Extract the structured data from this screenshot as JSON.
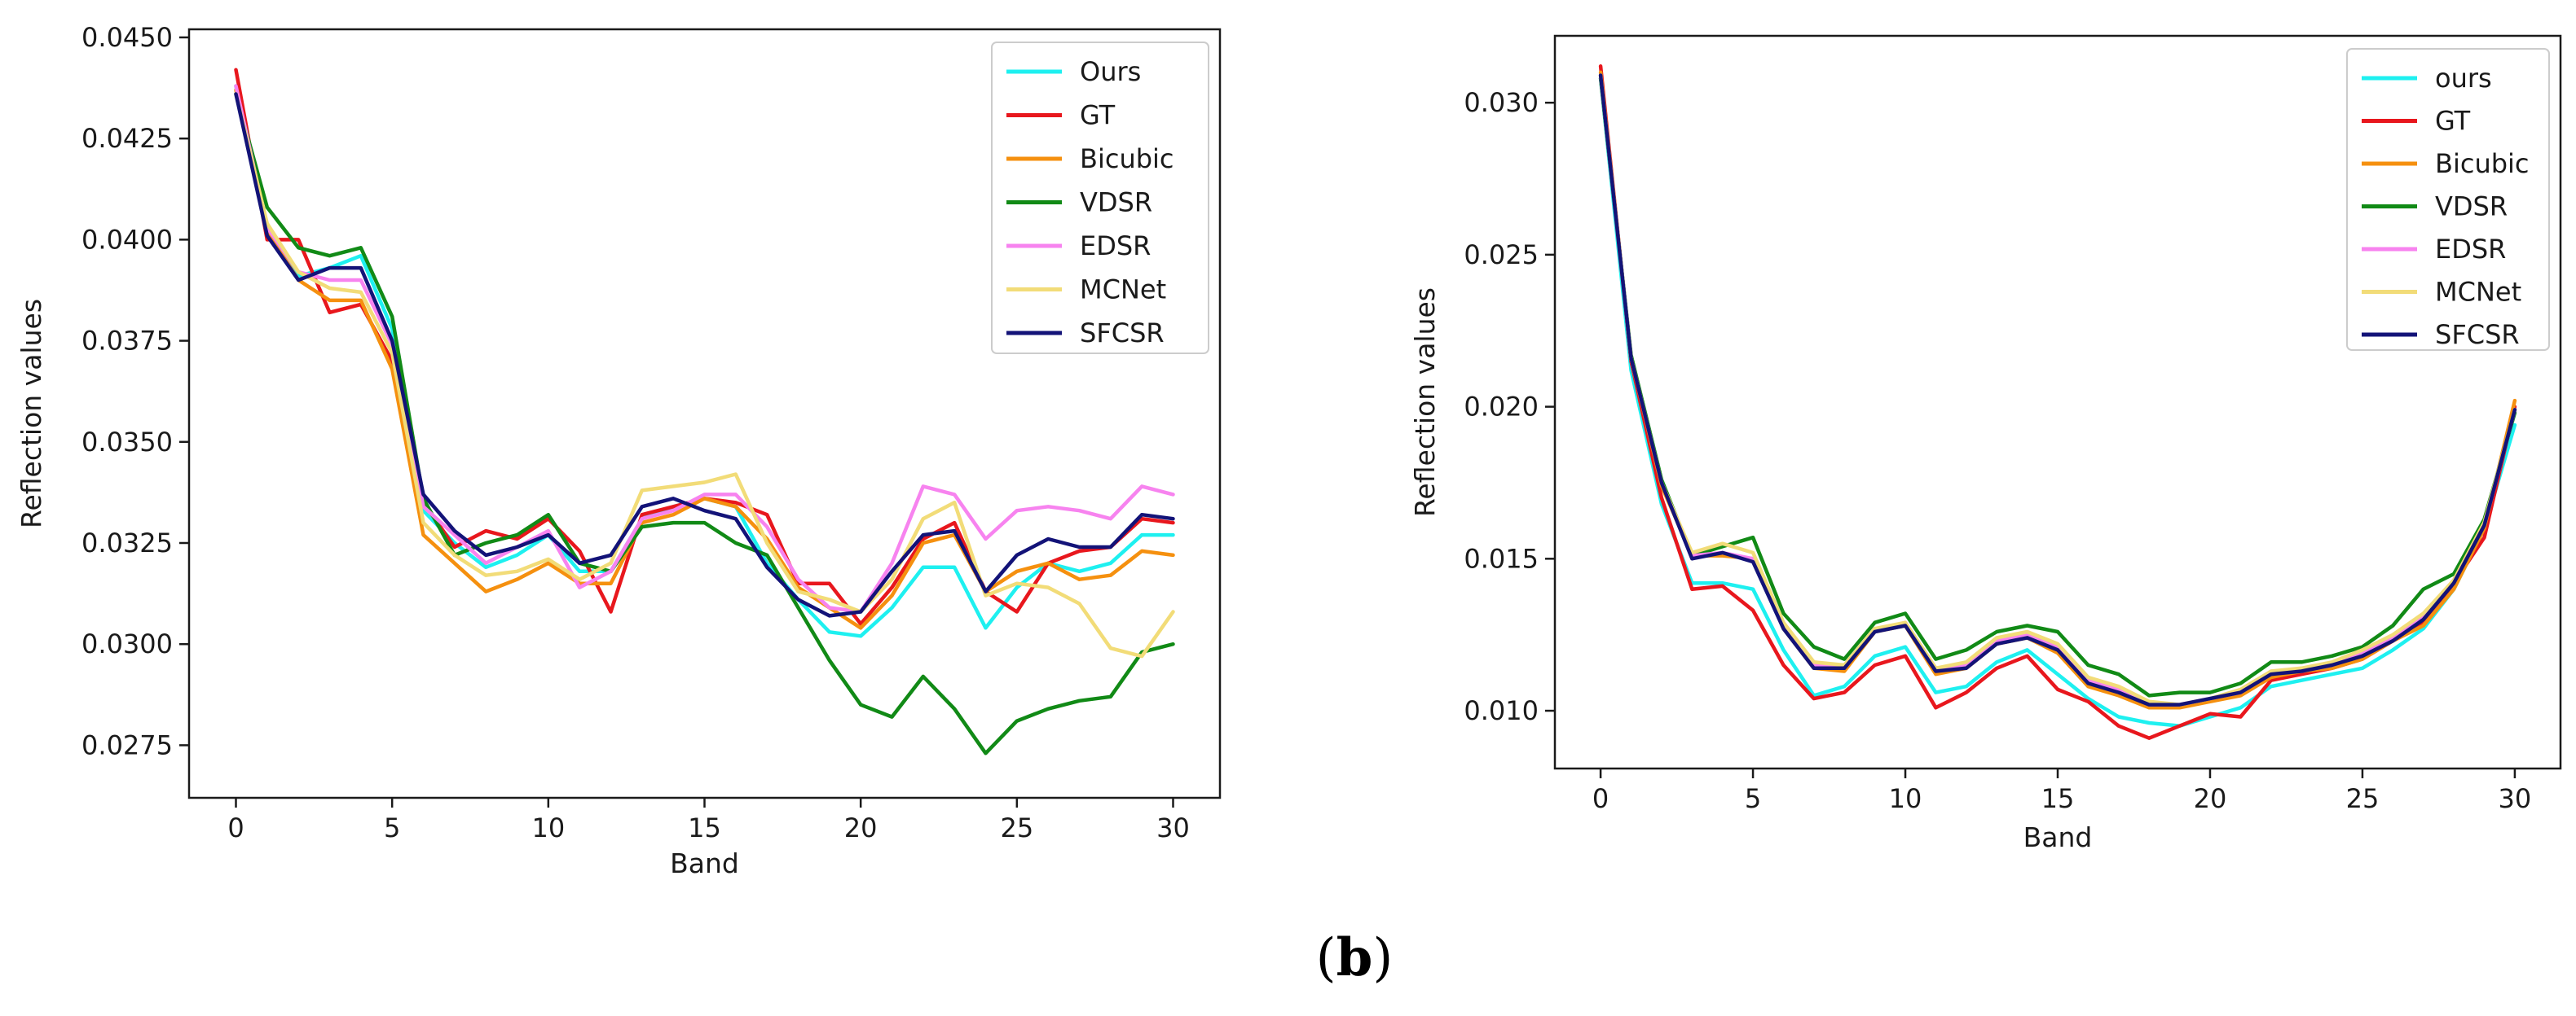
{
  "caption": {
    "open": "(",
    "letter": "b",
    "close": ")"
  },
  "chart_data": [
    {
      "type": "line",
      "xlabel": "Band",
      "ylabel": "Reflection values",
      "xlim": [
        -1.5,
        31.5
      ],
      "ylim": [
        0.0262,
        0.0452
      ],
      "xticks": [
        0,
        5,
        10,
        15,
        20,
        25,
        30
      ],
      "xtick_labels": [
        "0",
        "5",
        "10",
        "15",
        "20",
        "25",
        "30"
      ],
      "yticks": [
        0.0275,
        0.03,
        0.0325,
        0.035,
        0.0375,
        0.04,
        0.0425,
        0.045
      ],
      "ytick_labels": [
        "0.0275",
        "0.0300",
        "0.0325",
        "0.0350",
        "0.0375",
        "0.0400",
        "0.0425",
        "0.0450"
      ],
      "legend_position": "top-right",
      "x": [
        0,
        1,
        2,
        3,
        4,
        5,
        6,
        7,
        8,
        9,
        10,
        11,
        12,
        13,
        14,
        15,
        16,
        17,
        18,
        19,
        20,
        21,
        22,
        23,
        24,
        25,
        26,
        27,
        28,
        29,
        30
      ],
      "series": [
        {
          "name": "Ours",
          "color": "#1ef0f0",
          "values": [
            0.0438,
            0.0402,
            0.0391,
            0.0393,
            0.0396,
            0.0378,
            0.0333,
            0.0325,
            0.0319,
            0.0322,
            0.0327,
            0.0318,
            0.0318,
            0.0331,
            0.0334,
            0.0336,
            0.0334,
            0.032,
            0.0311,
            0.0303,
            0.0302,
            0.0309,
            0.0319,
            0.0319,
            0.0304,
            0.0314,
            0.032,
            0.0318,
            0.032,
            0.0327,
            0.0327
          ]
        },
        {
          "name": "GT",
          "color": "#e8171d",
          "values": [
            0.0442,
            0.04,
            0.04,
            0.0382,
            0.0384,
            0.037,
            0.0335,
            0.0324,
            0.0328,
            0.0326,
            0.0331,
            0.0323,
            0.0308,
            0.0332,
            0.0334,
            0.0336,
            0.0335,
            0.0332,
            0.0315,
            0.0315,
            0.0305,
            0.0314,
            0.0326,
            0.033,
            0.0313,
            0.0308,
            0.032,
            0.0323,
            0.0324,
            0.0331,
            0.033
          ]
        },
        {
          "name": "Bicubic",
          "color": "#f5900f",
          "values": [
            0.0437,
            0.0402,
            0.039,
            0.0385,
            0.0385,
            0.0368,
            0.0327,
            0.032,
            0.0313,
            0.0316,
            0.032,
            0.0315,
            0.0315,
            0.033,
            0.0332,
            0.0336,
            0.0334,
            0.0326,
            0.0314,
            0.0309,
            0.0304,
            0.0312,
            0.0325,
            0.0327,
            0.0313,
            0.0318,
            0.032,
            0.0316,
            0.0317,
            0.0323,
            0.0322
          ]
        },
        {
          "name": "VDSR",
          "color": "#118a16",
          "values": [
            0.0436,
            0.0408,
            0.0398,
            0.0396,
            0.0398,
            0.0381,
            0.0336,
            0.0322,
            0.0325,
            0.0327,
            0.0332,
            0.032,
            0.0318,
            0.0329,
            0.033,
            0.033,
            0.0325,
            0.0322,
            0.0309,
            0.0296,
            0.0285,
            0.0282,
            0.0292,
            0.0284,
            0.0273,
            0.0281,
            0.0284,
            0.0286,
            0.0287,
            0.0298,
            0.03
          ]
        },
        {
          "name": "EDSR",
          "color": "#f783ef",
          "values": [
            0.0438,
            0.0403,
            0.0392,
            0.039,
            0.039,
            0.0374,
            0.0334,
            0.0327,
            0.032,
            0.0324,
            0.0328,
            0.0314,
            0.0318,
            0.0331,
            0.0333,
            0.0337,
            0.0337,
            0.0329,
            0.0316,
            0.0309,
            0.0308,
            0.032,
            0.0339,
            0.0337,
            0.0326,
            0.0333,
            0.0334,
            0.0333,
            0.0331,
            0.0339,
            0.0337
          ]
        },
        {
          "name": "MCNet",
          "color": "#f2dc78",
          "values": [
            0.0436,
            0.0404,
            0.0392,
            0.0388,
            0.0387,
            0.0372,
            0.033,
            0.0322,
            0.0317,
            0.0318,
            0.0321,
            0.0316,
            0.032,
            0.0338,
            0.0339,
            0.034,
            0.0342,
            0.0325,
            0.0313,
            0.0311,
            0.0308,
            0.0316,
            0.0331,
            0.0335,
            0.0312,
            0.0315,
            0.0314,
            0.031,
            0.0299,
            0.0297,
            0.0308
          ]
        },
        {
          "name": "SFCSR",
          "color": "#131378",
          "values": [
            0.0436,
            0.0401,
            0.039,
            0.0393,
            0.0393,
            0.0375,
            0.0337,
            0.0328,
            0.0322,
            0.0324,
            0.0327,
            0.032,
            0.0322,
            0.0334,
            0.0336,
            0.0333,
            0.0331,
            0.0319,
            0.0311,
            0.0307,
            0.0308,
            0.0318,
            0.0327,
            0.0328,
            0.0313,
            0.0322,
            0.0326,
            0.0324,
            0.0324,
            0.0332,
            0.0331
          ]
        }
      ]
    },
    {
      "type": "line",
      "xlabel": "Band",
      "ylabel": "Reflection values",
      "xlim": [
        -1.5,
        31.5
      ],
      "ylim": [
        0.0081,
        0.0322
      ],
      "xticks": [
        0,
        5,
        10,
        15,
        20,
        25,
        30
      ],
      "xtick_labels": [
        "0",
        "5",
        "10",
        "15",
        "20",
        "25",
        "30"
      ],
      "yticks": [
        0.01,
        0.015,
        0.02,
        0.025,
        0.03
      ],
      "ytick_labels": [
        "0.010",
        "0.015",
        "0.020",
        "0.025",
        "0.030"
      ],
      "legend_position": "top-right",
      "x": [
        0,
        1,
        2,
        3,
        4,
        5,
        6,
        7,
        8,
        9,
        10,
        11,
        12,
        13,
        14,
        15,
        16,
        17,
        18,
        19,
        20,
        21,
        22,
        23,
        24,
        25,
        26,
        27,
        28,
        29,
        30
      ],
      "series": [
        {
          "name": "ours",
          "color": "#1ef0f0",
          "values": [
            0.0308,
            0.0212,
            0.0168,
            0.0142,
            0.0142,
            0.014,
            0.012,
            0.0105,
            0.0108,
            0.0118,
            0.0121,
            0.0106,
            0.0108,
            0.0116,
            0.012,
            0.0112,
            0.0104,
            0.0098,
            0.0096,
            0.0095,
            0.0098,
            0.0101,
            0.0108,
            0.011,
            0.0112,
            0.0114,
            0.012,
            0.0127,
            0.014,
            0.016,
            0.0194
          ]
        },
        {
          "name": "GT",
          "color": "#e8171d",
          "values": [
            0.0312,
            0.0215,
            0.017,
            0.014,
            0.0141,
            0.0133,
            0.0115,
            0.0104,
            0.0106,
            0.0115,
            0.0118,
            0.0101,
            0.0106,
            0.0114,
            0.0118,
            0.0107,
            0.0103,
            0.0095,
            0.0091,
            0.0095,
            0.0099,
            0.0098,
            0.011,
            0.0112,
            0.0114,
            0.0117,
            0.0123,
            0.0129,
            0.0142,
            0.0157,
            0.02
          ]
        },
        {
          "name": "Bicubic",
          "color": "#f5900f",
          "values": [
            0.031,
            0.0216,
            0.0174,
            0.0151,
            0.0151,
            0.015,
            0.0127,
            0.0114,
            0.0113,
            0.0126,
            0.0128,
            0.0112,
            0.0114,
            0.0122,
            0.0124,
            0.0119,
            0.0108,
            0.0105,
            0.0101,
            0.0101,
            0.0103,
            0.0105,
            0.0111,
            0.0113,
            0.0114,
            0.0117,
            0.0123,
            0.0128,
            0.014,
            0.016,
            0.0202
          ]
        },
        {
          "name": "VDSR",
          "color": "#118a16",
          "values": [
            0.0308,
            0.0217,
            0.0176,
            0.0151,
            0.0154,
            0.0157,
            0.0132,
            0.0121,
            0.0117,
            0.0129,
            0.0132,
            0.0117,
            0.012,
            0.0126,
            0.0128,
            0.0126,
            0.0115,
            0.0112,
            0.0105,
            0.0106,
            0.0106,
            0.0109,
            0.0116,
            0.0116,
            0.0118,
            0.0121,
            0.0128,
            0.014,
            0.0145,
            0.0163,
            0.0198
          ]
        },
        {
          "name": "EDSR",
          "color": "#f783ef",
          "values": [
            0.0309,
            0.0216,
            0.0175,
            0.0151,
            0.0152,
            0.015,
            0.0128,
            0.0115,
            0.0115,
            0.0126,
            0.0129,
            0.0114,
            0.0115,
            0.0123,
            0.0125,
            0.0121,
            0.011,
            0.0107,
            0.0102,
            0.0102,
            0.0104,
            0.0106,
            0.0113,
            0.0113,
            0.0115,
            0.0119,
            0.0124,
            0.0131,
            0.0143,
            0.0161,
            0.0199
          ]
        },
        {
          "name": "MCNet",
          "color": "#f2dc78",
          "values": [
            0.0309,
            0.0216,
            0.0175,
            0.0152,
            0.0155,
            0.0152,
            0.0129,
            0.0116,
            0.0115,
            0.0127,
            0.0129,
            0.0114,
            0.0116,
            0.0124,
            0.0126,
            0.0122,
            0.0111,
            0.0108,
            0.0103,
            0.0102,
            0.0104,
            0.0107,
            0.0113,
            0.0114,
            0.0116,
            0.012,
            0.0125,
            0.0132,
            0.0143,
            0.0162,
            0.0199
          ]
        },
        {
          "name": "SFCSR",
          "color": "#131378",
          "values": [
            0.0309,
            0.0216,
            0.0175,
            0.015,
            0.0152,
            0.0149,
            0.0127,
            0.0114,
            0.0114,
            0.0126,
            0.0128,
            0.0113,
            0.0114,
            0.0122,
            0.0124,
            0.012,
            0.0109,
            0.0106,
            0.0102,
            0.0102,
            0.0104,
            0.0106,
            0.0112,
            0.0113,
            0.0115,
            0.0118,
            0.0123,
            0.013,
            0.0142,
            0.0161,
            0.0199
          ]
        }
      ]
    }
  ]
}
